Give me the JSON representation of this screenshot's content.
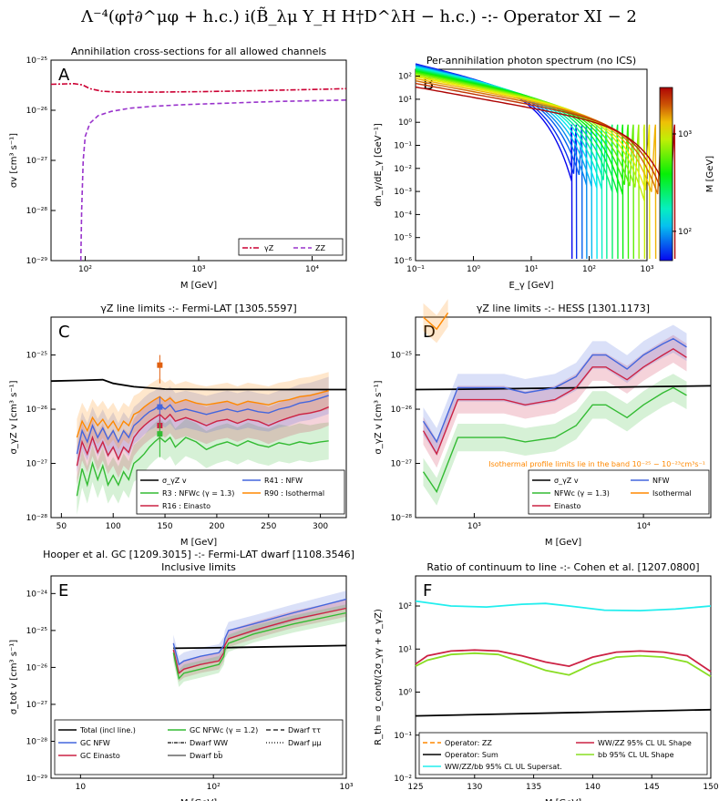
{
  "figure_title": "Λ⁻⁴(φ†∂^μφ + h.c.) i(B̃_λμ Y_H H†D^λH − h.c.) -:- Operator XI − 2",
  "colors": {
    "gammaZ": "#cc0033",
    "ZZ": "#9933cc",
    "black": "#000000",
    "green": "#33bb33",
    "red": "#cc2244",
    "blue": "#4466dd",
    "orange": "#ff8800",
    "cyan": "#22eeee",
    "lime": "#88dd22",
    "err_orange": "#e06010"
  },
  "panels": {
    "A": {
      "letter": "A",
      "title": "Annihilation cross-sections for all allowed channels",
      "xlabel": "M [GeV]",
      "ylabel": "σv [cm³ s⁻¹]",
      "xticks": [
        "10²",
        "10³",
        "10⁴"
      ],
      "yticks": [
        "10⁻²⁵",
        "10⁻²⁶",
        "10⁻²⁷",
        "10⁻²⁸",
        "10⁻²⁹"
      ],
      "legend": [
        "γZ",
        "ZZ"
      ]
    },
    "B": {
      "letter": "B",
      "title": "Per-annihilation photon spectrum (no ICS)",
      "xlabel": "E_γ [GeV]",
      "ylabel": "dn_γ/dE_γ [GeV⁻¹]",
      "xticks": [
        "10⁻¹",
        "10⁰",
        "10¹",
        "10²",
        "10³"
      ],
      "yticks": [
        "10²",
        "10¹",
        "10⁰",
        "10⁻¹",
        "10⁻²",
        "10⁻³",
        "10⁻⁴",
        "10⁻⁵",
        "10⁻⁶"
      ],
      "colorbar_label": "M [GeV]",
      "colorbar_ticks": [
        "10³",
        "10²"
      ]
    },
    "C": {
      "letter": "C",
      "title": "γZ line limits -:- Fermi-LAT [1305.5597]",
      "xlabel": "M [GeV]",
      "ylabel": "σ_γZ v [cm³ s⁻¹]",
      "xticks": [
        "50",
        "100",
        "150",
        "200",
        "250",
        "300"
      ],
      "yticks": [
        "10⁻²⁵",
        "10⁻²⁶",
        "10⁻²⁷",
        "10⁻²⁸"
      ],
      "legend": [
        "σ_γZ v",
        "R3 : NFWc (γ = 1.3)",
        "R16 : Einasto",
        "R41 : NFW",
        "R90 : Isothermal"
      ]
    },
    "D": {
      "letter": "D",
      "title": "γZ line limits -:- HESS [1301.1173]",
      "xlabel": "M [GeV]",
      "ylabel": "σ_γZ v [cm³ s⁻¹]",
      "xticks": [
        "10³",
        "10⁴"
      ],
      "yticks": [
        "10⁻²⁵",
        "10⁻²⁶",
        "10⁻²⁷",
        "10⁻²⁸"
      ],
      "note": "Isothermal profile limits lie in the band 10⁻²⁵ − 10⁻²³cm³s⁻¹",
      "legend": [
        "σ_γZ v",
        "NFWc (γ = 1.3)",
        "Einasto",
        "NFW",
        "Isothermal"
      ]
    },
    "E": {
      "letter": "E",
      "title": "Inclusive limits",
      "title2": "Hooper et al. GC [1209.3015] -:- Fermi-LAT dwarf [1108.3546]",
      "xlabel": "M [GeV]",
      "ylabel": "σ_tot v [cm³ s⁻¹]",
      "xticks": [
        "10",
        "10²",
        "10³"
      ],
      "yticks": [
        "10⁻²⁴",
        "10⁻²⁵",
        "10⁻²⁶",
        "10⁻²⁷",
        "10⁻²⁸",
        "10⁻²⁹"
      ],
      "legend": [
        "Total (incl line.)",
        "GC NFW",
        "GC Einasto",
        "GC NFWc (γ = 1.2)",
        "Dwarf WW",
        "Dwarf bb̄",
        "Dwarf ττ",
        "Dwarf μμ"
      ]
    },
    "F": {
      "letter": "F",
      "title": "Ratio of continuum to line -:- Cohen et al. [1207.0800]",
      "xlabel": "M [GeV]",
      "ylabel": "R_th = σ_cont/(2σ_γγ + σ_γZ)",
      "xticks": [
        "125",
        "130",
        "135",
        "140",
        "145",
        "150"
      ],
      "yticks": [
        "10²",
        "10¹",
        "10⁰",
        "10⁻¹",
        "10⁻²"
      ],
      "legend": [
        "Operator: ZZ",
        "Operator: Sum",
        "WW/ZZ/bb 95% CL UL Supersat.",
        "WW/ZZ 95% CL UL Shape",
        "bb 95% CL UL Shape"
      ]
    }
  },
  "chart_data": [
    {
      "panel": "A",
      "type": "line",
      "xscale": "log",
      "yscale": "log",
      "xlim": [
        50,
        20000
      ],
      "ylim": [
        1e-29,
        1e-25
      ],
      "series": [
        {
          "name": "γZ",
          "x": [
            50,
            80,
            95,
            110,
            140,
            200,
            400,
            1000,
            3000,
            10000,
            20000
          ],
          "y": [
            3.3e-26,
            3.4e-26,
            3.2e-26,
            2.7e-26,
            2.4e-26,
            2.3e-26,
            2.3e-26,
            2.35e-26,
            2.45e-26,
            2.6e-26,
            2.7e-26
          ]
        },
        {
          "name": "ZZ",
          "x": [
            91.5,
            93,
            96,
            100,
            110,
            130,
            170,
            250,
            400,
            800,
            2000,
            5000,
            20000
          ],
          "y": [
            1e-29,
            1e-28,
            1e-27,
            3e-27,
            5.5e-27,
            7.8e-27,
            9.5e-27,
            1.1e-26,
            1.2e-26,
            1.3e-26,
            1.4e-26,
            1.5e-26,
            1.6e-26
          ]
        }
      ]
    },
    {
      "panel": "B",
      "type": "line",
      "xscale": "log",
      "yscale": "log",
      "xlim": [
        0.1,
        1000
      ],
      "ylim": [
        1e-06,
        200
      ],
      "colorbar": {
        "min": 50,
        "max": 3000,
        "scale": "log",
        "label": "M [GeV]"
      },
      "masses": [
        50,
        60,
        75,
        90,
        110,
        135,
        165,
        200,
        250,
        310,
        380,
        470,
        580,
        720,
        900,
        1100,
        1400,
        1800,
        2300,
        3000
      ]
    },
    {
      "panel": "C",
      "type": "line",
      "xscale": "linear",
      "yscale": "log",
      "xlim": [
        40,
        325
      ],
      "ylim": [
        1e-28,
        5e-25
      ],
      "series": [
        {
          "name": "σ_γZ v",
          "x": [
            40,
            70,
            90,
            100,
            120,
            150,
            200,
            250,
            300,
            325
          ],
          "y": [
            3.3e-26,
            3.4e-26,
            3.5e-26,
            3e-26,
            2.6e-26,
            2.35e-26,
            2.3e-26,
            2.3e-26,
            2.3e-26,
            2.3e-26
          ]
        },
        {
          "name": "R3 : NFWc (γ = 1.3)",
          "x": [
            65,
            70,
            75,
            80,
            85,
            90,
            95,
            100,
            105,
            110,
            115,
            120,
            125,
            130,
            135,
            140,
            145,
            150,
            155,
            160,
            170,
            180,
            190,
            200,
            210,
            220,
            230,
            240,
            250,
            260,
            270,
            280,
            290,
            300,
            308
          ],
          "y": [
            2.5e-28,
            8e-28,
            4e-28,
            1e-27,
            5e-28,
            9e-28,
            4e-28,
            6e-28,
            4e-28,
            7e-28,
            5e-28,
            1e-27,
            1.2e-27,
            1.5e-27,
            2e-27,
            2.5e-27,
            3e-27,
            2.5e-27,
            3e-27,
            2e-27,
            3e-27,
            2.5e-27,
            1.8e-27,
            2.2e-27,
            2.5e-27,
            2.1e-27,
            2.6e-27,
            2.2e-27,
            2e-27,
            2.4e-27,
            2.2e-27,
            2.5e-27,
            2.3e-27,
            2.5e-27,
            2.6e-27
          ]
        },
        {
          "name": "R16 : Einasto",
          "x": [
            65,
            70,
            75,
            80,
            85,
            90,
            95,
            100,
            105,
            110,
            115,
            120,
            125,
            130,
            135,
            140,
            145,
            150,
            155,
            160,
            170,
            180,
            190,
            200,
            210,
            220,
            230,
            240,
            250,
            260,
            270,
            280,
            290,
            300,
            308
          ],
          "y": [
            9e-28,
            2.5e-27,
            1.5e-27,
            3e-27,
            1.6e-27,
            2.5e-27,
            1.4e-27,
            2e-27,
            1.2e-27,
            2e-27,
            1.6e-27,
            3e-27,
            4e-27,
            5e-27,
            6e-27,
            7e-27,
            8e-27,
            6.5e-27,
            8e-27,
            6e-27,
            7e-27,
            6e-27,
            5e-27,
            6e-27,
            6.5e-27,
            5.5e-27,
            6.5e-27,
            6e-27,
            5e-27,
            6e-27,
            7e-27,
            8e-27,
            8.5e-27,
            9.5e-27,
            1.1e-26
          ]
        },
        {
          "name": "R41 : NFW",
          "x": [
            65,
            70,
            75,
            80,
            85,
            90,
            95,
            100,
            105,
            110,
            115,
            120,
            125,
            130,
            135,
            140,
            145,
            150,
            155,
            160,
            170,
            180,
            190,
            200,
            210,
            220,
            230,
            240,
            250,
            260,
            270,
            280,
            290,
            300,
            308
          ],
          "y": [
            1.5e-27,
            4e-27,
            2.5e-27,
            5e-27,
            3e-27,
            4.5e-27,
            2.8e-27,
            4e-27,
            2.5e-27,
            4e-27,
            3e-27,
            5e-27,
            6e-27,
            7.5e-27,
            9e-27,
            1e-26,
            1.2e-26,
            1e-26,
            1.2e-26,
            9e-27,
            1e-26,
            9e-27,
            8e-27,
            9e-27,
            1e-26,
            9e-27,
            1e-26,
            9e-27,
            8.5e-27,
            1e-26,
            1.1e-26,
            1.3e-26,
            1.4e-26,
            1.6e-26,
            1.8e-26
          ]
        },
        {
          "name": "R90 : Isothermal",
          "x": [
            65,
            70,
            75,
            80,
            85,
            90,
            95,
            100,
            105,
            110,
            115,
            120,
            125,
            130,
            135,
            140,
            145,
            150,
            155,
            160,
            170,
            180,
            190,
            200,
            210,
            220,
            230,
            240,
            250,
            260,
            270,
            280,
            290,
            300,
            308
          ],
          "y": [
            3e-27,
            6e-27,
            4e-27,
            7e-27,
            5e-27,
            6.5e-27,
            4.5e-27,
            6e-27,
            4e-27,
            6e-27,
            5e-27,
            8e-27,
            9e-27,
            1.1e-26,
            1.3e-26,
            1.5e-26,
            1.7e-26,
            1.4e-26,
            1.6e-26,
            1.3e-26,
            1.5e-26,
            1.3e-26,
            1.2e-26,
            1.3e-26,
            1.4e-26,
            1.2e-26,
            1.4e-26,
            1.3e-26,
            1.2e-26,
            1.4e-26,
            1.5e-26,
            1.7e-26,
            1.8e-26,
            2e-26,
            2.2e-26
          ]
        }
      ],
      "points": [
        {
          "x": 145,
          "y": 6.5e-26,
          "ylo": 3e-26,
          "yhi": 1e-25,
          "color": "#e06010"
        },
        {
          "x": 145,
          "y": 1.1e-26,
          "ylo": 5e-27,
          "yhi": 1.7e-26,
          "color": "#4466dd"
        },
        {
          "x": 145,
          "y": 5e-27,
          "ylo": 2.5e-27,
          "yhi": 8e-27,
          "color": "#cc2244"
        },
        {
          "x": 145,
          "y": 3.5e-27,
          "ylo": 1.3e-27,
          "yhi": 5.5e-27,
          "color": "#33bb33"
        }
      ]
    },
    {
      "panel": "D",
      "type": "line",
      "xscale": "log",
      "yscale": "log",
      "xlim": [
        450,
        25000
      ],
      "ylim": [
        1e-28,
        5e-25
      ],
      "series": [
        {
          "name": "σ_γZ v",
          "x": [
            450,
            1000,
            3000,
            10000,
            25000
          ],
          "y": [
            2.3e-26,
            2.35e-26,
            2.45e-26,
            2.6e-26,
            2.7e-26
          ]
        },
        {
          "name": "NFWc (γ = 1.3)",
          "x": [
            500,
            600,
            800,
            1000,
            1500,
            2000,
            3000,
            4000,
            5000,
            6000,
            8000,
            10000,
            13000,
            15000,
            18000
          ],
          "y": [
            7e-28,
            3e-28,
            3e-27,
            3e-27,
            3e-27,
            2.5e-27,
            3e-27,
            5e-27,
            1.2e-26,
            1.2e-26,
            7e-27,
            1.2e-26,
            2e-26,
            2.5e-26,
            1.8e-26
          ]
        },
        {
          "name": "Einasto",
          "x": [
            500,
            600,
            800,
            1000,
            1500,
            2000,
            3000,
            4000,
            5000,
            6000,
            8000,
            10000,
            13000,
            15000,
            18000
          ],
          "y": [
            4e-27,
            1.5e-27,
            1.5e-26,
            1.5e-26,
            1.5e-26,
            1.2e-26,
            1.5e-26,
            2.5e-26,
            6e-26,
            6e-26,
            3.5e-26,
            6e-26,
            1e-25,
            1.3e-25,
            9e-26
          ]
        },
        {
          "name": "NFW",
          "x": [
            500,
            600,
            800,
            1000,
            1500,
            2000,
            3000,
            4000,
            5000,
            6000,
            8000,
            10000,
            13000,
            15000,
            18000
          ],
          "y": [
            6e-27,
            2.5e-27,
            2.5e-26,
            2.5e-26,
            2.5e-26,
            2e-26,
            2.5e-26,
            4e-26,
            1e-25,
            1e-25,
            5.5e-26,
            1e-25,
            1.6e-25,
            2e-25,
            1.4e-25
          ]
        },
        {
          "name": "Isothermal",
          "x": [
            500,
            600,
            700
          ],
          "y": [
            5e-25,
            3e-25,
            6e-25
          ]
        }
      ]
    },
    {
      "panel": "E",
      "type": "line",
      "xscale": "log",
      "yscale": "log",
      "xlim": [
        6,
        1000
      ],
      "ylim": [
        1e-29,
        3e-24
      ],
      "series": [
        {
          "name": "Total (incl line.)",
          "x": [
            50,
            100,
            1000
          ],
          "y": [
            3.3e-26,
            3.4e-26,
            3.9e-26
          ]
        },
        {
          "name": "GC NFW",
          "x": [
            50,
            55,
            60,
            80,
            110,
            120,
            122,
            130,
            200,
            400,
            1000
          ],
          "y": [
            4.5e-26,
            1.2e-26,
            1.5e-26,
            2e-26,
            2.5e-26,
            4e-26,
            6e-26,
            1e-25,
            1.5e-25,
            3e-25,
            7e-25
          ]
        },
        {
          "name": "GC Einasto",
          "x": [
            50,
            55,
            60,
            80,
            110,
            120,
            122,
            130,
            200,
            400,
            1000
          ],
          "y": [
            3e-26,
            7e-27,
            9e-27,
            1.2e-26,
            1.5e-26,
            2.5e-26,
            4e-26,
            6e-26,
            1e-25,
            2e-25,
            4e-25
          ]
        },
        {
          "name": "GC NFWc (γ = 1.2)",
          "x": [
            50,
            55,
            60,
            80,
            110,
            120,
            122,
            130,
            200,
            400,
            1000
          ],
          "y": [
            2.5e-26,
            5e-27,
            7e-27,
            9e-27,
            1.2e-26,
            2e-26,
            3e-26,
            4.5e-26,
            8e-26,
            1.5e-25,
            3e-25
          ]
        }
      ]
    },
    {
      "panel": "F",
      "type": "line",
      "xscale": "linear",
      "yscale": "log",
      "xlim": [
        125,
        150
      ],
      "ylim": [
        0.01,
        500
      ],
      "series": [
        {
          "name": "Operator: Sum",
          "x": [
            125,
            150
          ],
          "y": [
            0.28,
            0.39
          ]
        },
        {
          "name": "WW/ZZ/bb 95% CL UL Supersat.",
          "x": [
            125,
            128,
            131,
            134,
            136,
            138,
            141,
            144,
            147,
            150
          ],
          "y": [
            130,
            100,
            95,
            110,
            115,
            100,
            80,
            78,
            85,
            100
          ]
        },
        {
          "name": "WW/ZZ 95% CL UL Shape",
          "x": [
            125,
            126,
            128,
            130,
            132,
            134,
            136,
            138,
            140,
            142,
            144,
            146,
            148,
            150
          ],
          "y": [
            4.5,
            7,
            9,
            9.5,
            9,
            7,
            5,
            4,
            6.5,
            8.5,
            9,
            8.5,
            7,
            3
          ]
        },
        {
          "name": "bb 95% CL UL Shape",
          "x": [
            125,
            126,
            128,
            130,
            132,
            134,
            136,
            138,
            140,
            142,
            144,
            146,
            148,
            150
          ],
          "y": [
            4,
            5.5,
            7.5,
            8,
            7.5,
            5,
            3.2,
            2.5,
            4.5,
            6.5,
            7,
            6.5,
            5,
            2.3
          ]
        }
      ]
    }
  ]
}
